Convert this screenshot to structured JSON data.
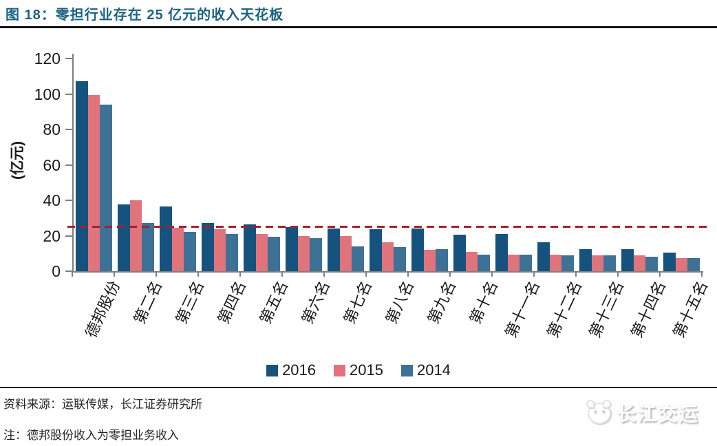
{
  "header": {
    "figure_title": "图 18：零担行业存在 25 亿元的收入天花板",
    "title_color": "#1B6383"
  },
  "chart_data": {
    "type": "bar",
    "title": "零担行业存在 25 亿元的收入天花板",
    "ylabel": "(亿元)",
    "xlabel": "",
    "ylim": [
      0,
      120
    ],
    "yticks": [
      0,
      20,
      40,
      60,
      80,
      100,
      120
    ],
    "grid": false,
    "legend_position": "bottom",
    "categories": [
      "德邦股份",
      "第二名",
      "第三名",
      "第四名",
      "第五名",
      "第六名",
      "第七名",
      "第八名",
      "第九名",
      "第十名",
      "第十一名",
      "第十二名",
      "第十三名",
      "第十四名",
      "第十五名"
    ],
    "series": [
      {
        "name": "2016",
        "color": "#15537E",
        "values": [
          107,
          37.5,
          36.5,
          27,
          26.5,
          25,
          24,
          23.5,
          24,
          20.5,
          21,
          16.5,
          12.5,
          12.5,
          10.5
        ]
      },
      {
        "name": "2015",
        "color": "#E0737C",
        "values": [
          99.5,
          40,
          24.5,
          23.5,
          21,
          20,
          20,
          16.5,
          12,
          11,
          9.5,
          9.5,
          9,
          9,
          7.5
        ]
      },
      {
        "name": "2014",
        "color": "#3D7195",
        "values": [
          94,
          27,
          22,
          21,
          19.5,
          18.5,
          14,
          13.5,
          12.5,
          9.5,
          9.5,
          9,
          9,
          8,
          7.5
        ]
      }
    ],
    "reference_line": {
      "value": 25,
      "color": "#A81E2C",
      "style": "dashed"
    }
  },
  "footer": {
    "source": "资料来源：运联传媒，长江证券研究所",
    "note": "注：德邦股份收入为零担业务收入",
    "watermark": "长江交运"
  }
}
